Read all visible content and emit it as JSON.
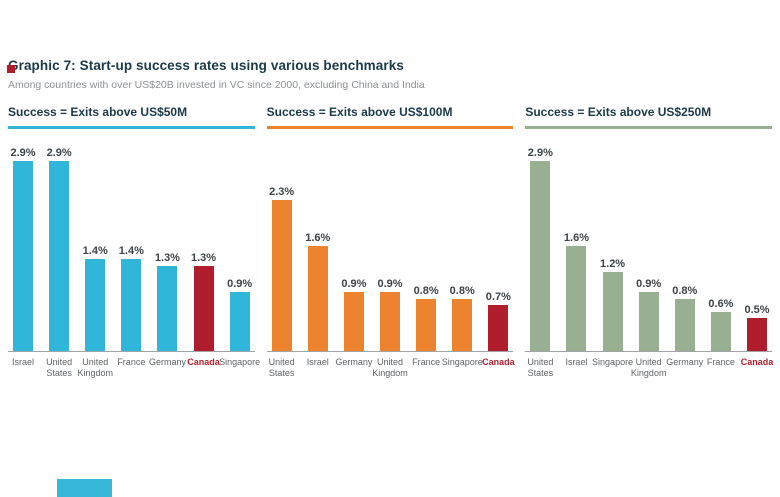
{
  "page": {
    "title": "Graphic 7: Start-up success rates using various benchmarks",
    "subtitle": "Among countries with over US$20B invested in VC since 2000, excluding China and India"
  },
  "colors": {
    "title_navy": "#1b3949",
    "subtitle_gray": "#8d9194",
    "value_label": "#3d4347",
    "country_label": "#5f6366",
    "axis_line": "#a0a4a6",
    "highlight_red": "#b01e2e",
    "brand_mark_red": "#b01e2e",
    "bottom_mark_cyan": "#35b7d8"
  },
  "chart_data": [
    {
      "type": "bar",
      "title": "Success = Exits above US$50M",
      "accent_color": "#2fb6d9",
      "unit": "%",
      "ylim": [
        0,
        3.2
      ],
      "grid": false,
      "legend": "none",
      "categories": [
        "Israel",
        "United States",
        "United Kingdom",
        "France",
        "Germany",
        "Canada",
        "Singapore"
      ],
      "values": [
        2.9,
        2.9,
        1.4,
        1.4,
        1.3,
        1.3,
        0.9
      ],
      "value_labels": [
        "2.9%",
        "2.9%",
        "1.4%",
        "1.4%",
        "1.3%",
        "1.3%",
        "0.9%"
      ],
      "highlight_category": "Canada"
    },
    {
      "type": "bar",
      "title": "Success = Exits above US$100M",
      "accent_color": "#ed822f",
      "unit": "%",
      "ylim": [
        0,
        3.2
      ],
      "grid": false,
      "legend": "none",
      "categories": [
        "United States",
        "Israel",
        "Germany",
        "United Kingdom",
        "France",
        "Singapore",
        "Canada"
      ],
      "values": [
        2.3,
        1.6,
        0.9,
        0.9,
        0.8,
        0.8,
        0.7
      ],
      "value_labels": [
        "2.3%",
        "1.6%",
        "0.9%",
        "0.9%",
        "0.8%",
        "0.8%",
        "0.7%"
      ],
      "highlight_category": "Canada"
    },
    {
      "type": "bar",
      "title": "Success = Exits above US$250M",
      "accent_color": "#99af92",
      "unit": "%",
      "ylim": [
        0,
        3.2
      ],
      "grid": false,
      "legend": "none",
      "categories": [
        "United States",
        "Israel",
        "Singapore",
        "United Kingdom",
        "Germany",
        "France",
        "Canada"
      ],
      "values": [
        2.9,
        1.6,
        1.2,
        0.9,
        0.8,
        0.6,
        0.5
      ],
      "value_labels": [
        "2.9%",
        "1.6%",
        "1.2%",
        "0.9%",
        "0.8%",
        "0.6%",
        "0.5%"
      ],
      "highlight_category": "Canada"
    }
  ]
}
